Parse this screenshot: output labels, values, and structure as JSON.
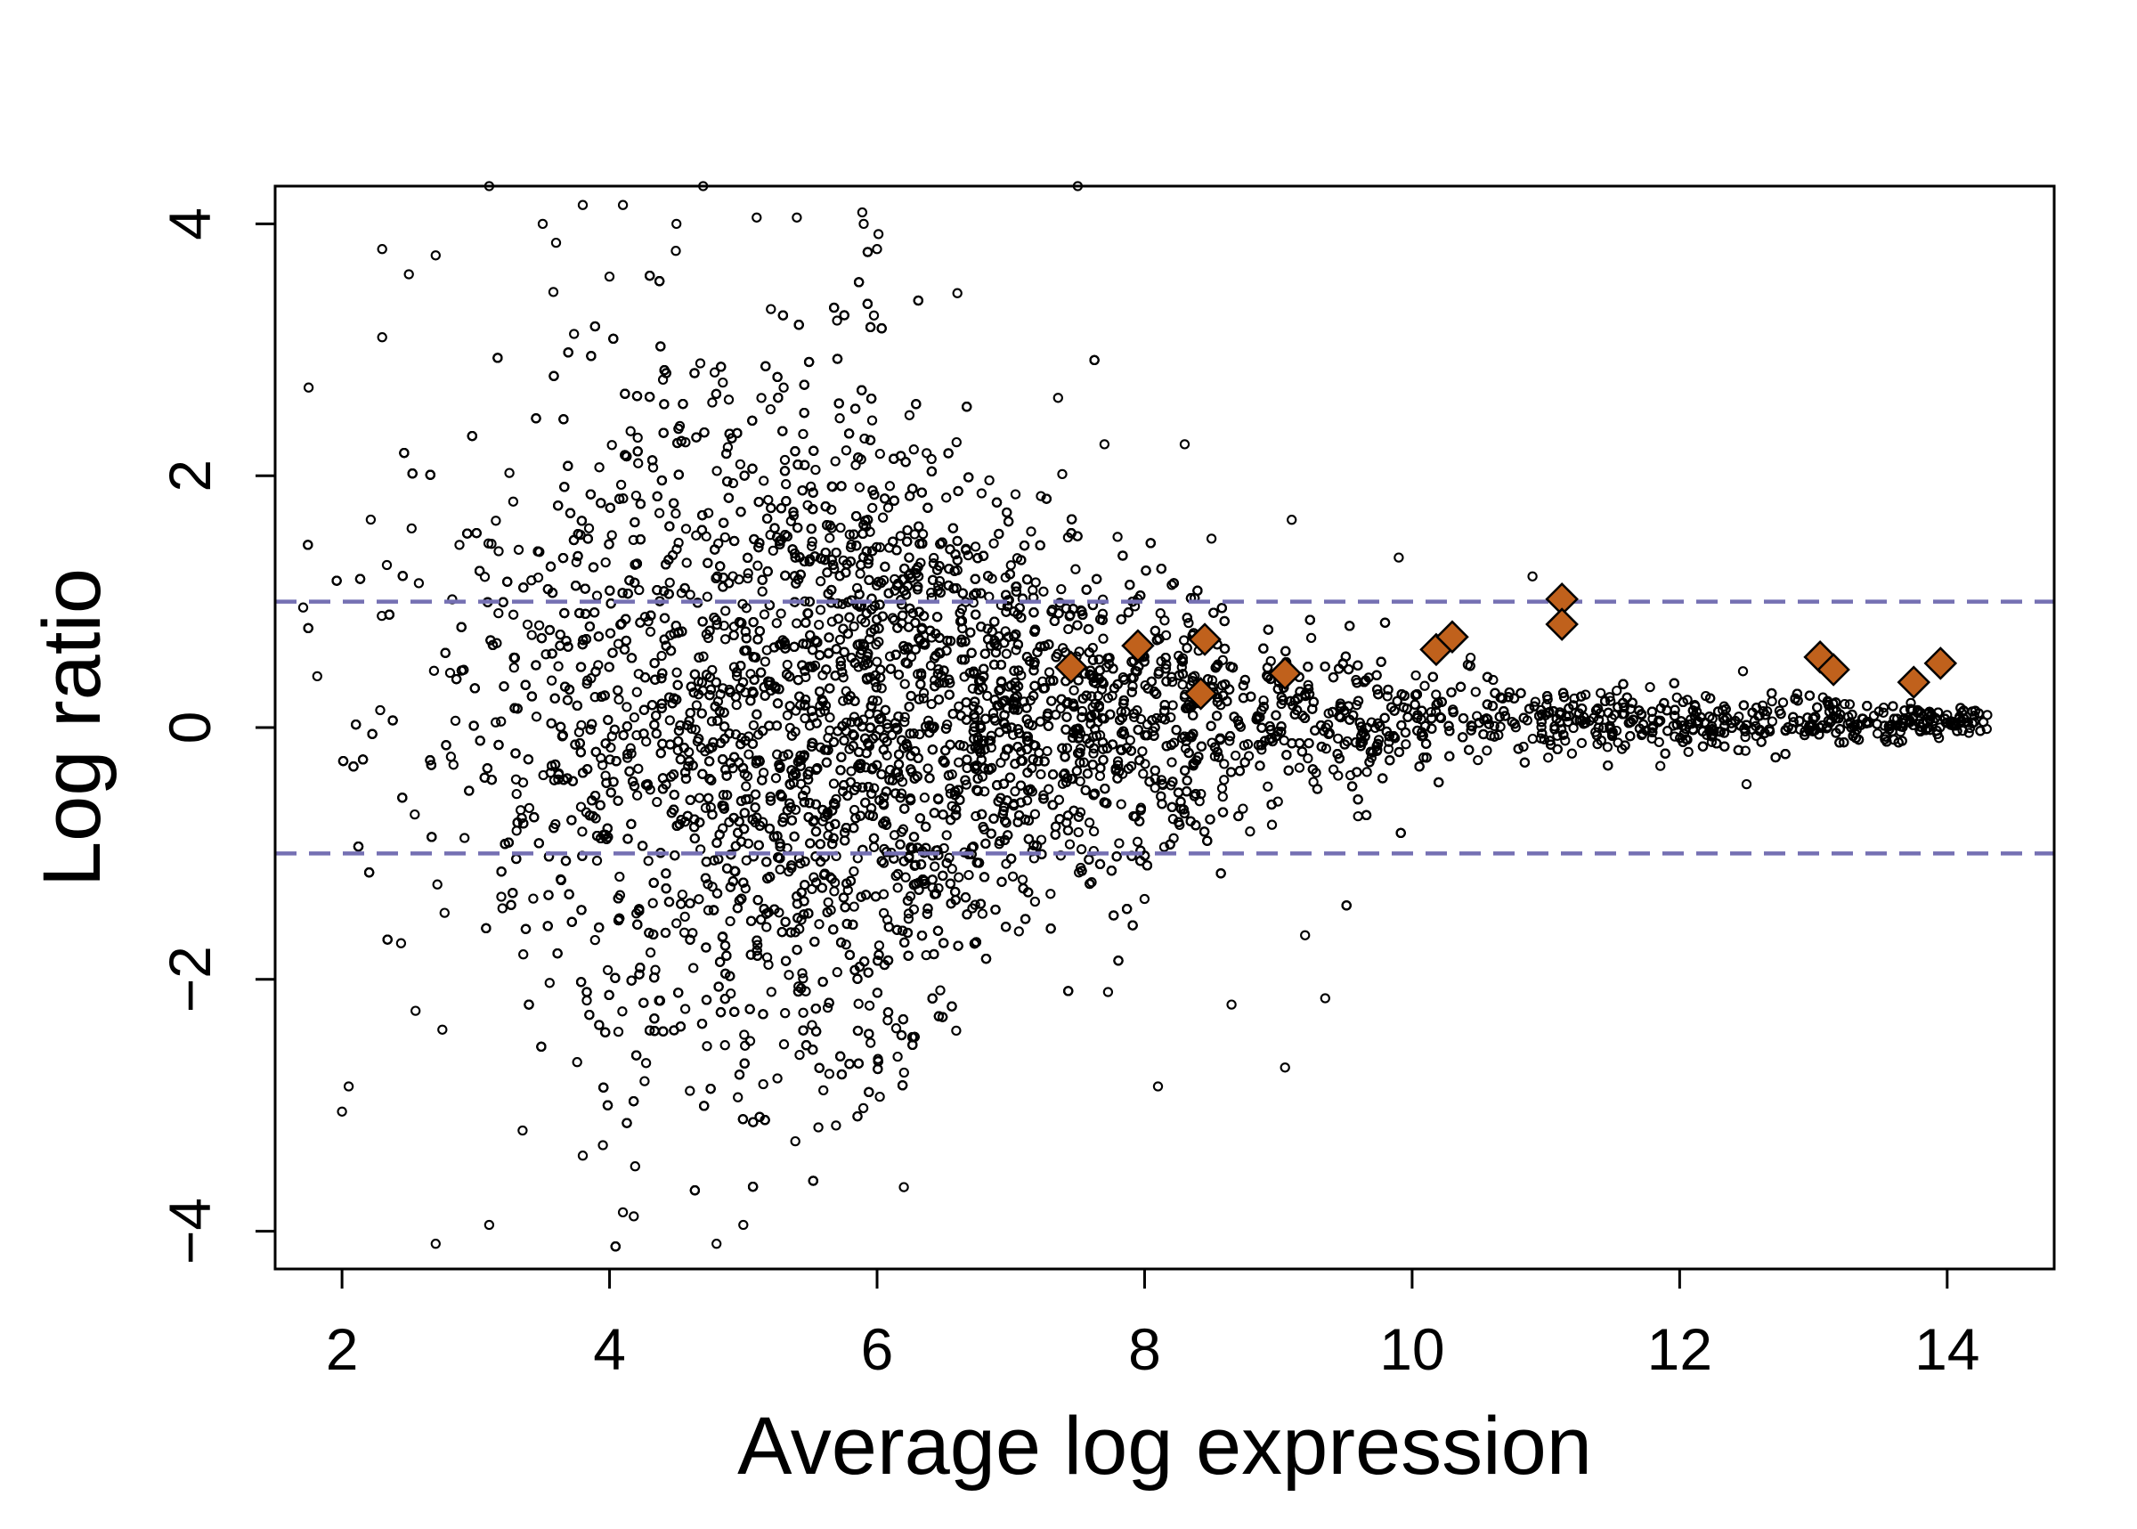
{
  "chart_data": {
    "type": "scatter",
    "title": "",
    "xlabel": "Average log expression",
    "ylabel": "Log ratio",
    "xlim": [
      1.5,
      14.8
    ],
    "ylim": [
      -4.3,
      4.3
    ],
    "x_ticks": [
      2,
      4,
      6,
      8,
      10,
      12,
      14
    ],
    "y_ticks": [
      -4,
      -2,
      0,
      2,
      4
    ],
    "x_tick_labels": [
      "2",
      "4",
      "6",
      "8",
      "10",
      "12",
      "14"
    ],
    "y_tick_labels": [
      "−4",
      "−2",
      "0",
      "2",
      "4"
    ],
    "grid": false,
    "legend": "none",
    "reference_lines": [
      {
        "y": 1,
        "style": "dashed",
        "color": "#7570b3"
      },
      {
        "y": -1,
        "style": "dashed",
        "color": "#7570b3"
      }
    ],
    "series": [
      {
        "marker": "open-circle",
        "color": "#000000",
        "approximate_point_count": 9000,
        "description_values": "dense cloud; spread widest near x 4–6, narrowing toward x 14",
        "points": [
          [
            1.75,
            2.7
          ],
          [
            2.0,
            -3.05
          ],
          [
            2.05,
            -2.85
          ],
          [
            2.3,
            3.8
          ],
          [
            2.3,
            3.1
          ],
          [
            2.5,
            3.6
          ],
          [
            2.55,
            -2.25
          ],
          [
            2.7,
            3.75
          ],
          [
            2.7,
            -4.1
          ],
          [
            2.75,
            -2.4
          ],
          [
            3.1,
            4.3
          ],
          [
            3.1,
            -3.95
          ],
          [
            3.35,
            -3.2
          ],
          [
            3.5,
            4.0
          ],
          [
            3.6,
            3.85
          ],
          [
            3.8,
            4.15
          ],
          [
            3.8,
            -3.4
          ],
          [
            4.1,
            4.15
          ],
          [
            4.1,
            -3.85
          ],
          [
            4.5,
            4.0
          ],
          [
            4.7,
            4.3
          ],
          [
            4.8,
            -4.1
          ],
          [
            5.0,
            -3.95
          ],
          [
            5.1,
            4.05
          ],
          [
            5.4,
            4.05
          ],
          [
            5.9,
            4.0
          ],
          [
            6.0,
            3.8
          ],
          [
            6.2,
            -3.65
          ],
          [
            6.6,
            3.45
          ],
          [
            7.5,
            4.3
          ],
          [
            7.7,
            2.25
          ],
          [
            8.3,
            2.25
          ],
          [
            8.5,
            1.5
          ],
          [
            9.1,
            1.65
          ],
          [
            9.05,
            -2.7
          ],
          [
            9.2,
            -1.65
          ],
          [
            9.35,
            -2.15
          ],
          [
            9.9,
            1.35
          ],
          [
            10.9,
            1.2
          ],
          [
            8.1,
            -2.85
          ],
          [
            8.65,
            -2.2
          ],
          [
            12.5,
            -0.45
          ],
          [
            14.3,
            0.1
          ],
          [
            14.0,
            0.1
          ]
        ]
      },
      {
        "name": "",
        "marker": "filled-diamond",
        "color": "#c0611c",
        "points": [
          [
            7.45,
            0.48
          ],
          [
            7.95,
            0.65
          ],
          [
            8.45,
            0.7
          ],
          [
            8.42,
            0.27
          ],
          [
            9.05,
            0.43
          ],
          [
            10.18,
            0.62
          ],
          [
            10.3,
            0.72
          ],
          [
            11.12,
            1.02
          ],
          [
            11.12,
            0.82
          ],
          [
            13.05,
            0.56
          ],
          [
            13.15,
            0.46
          ],
          [
            13.75,
            0.36
          ],
          [
            13.95,
            0.51
          ]
        ]
      }
    ]
  }
}
